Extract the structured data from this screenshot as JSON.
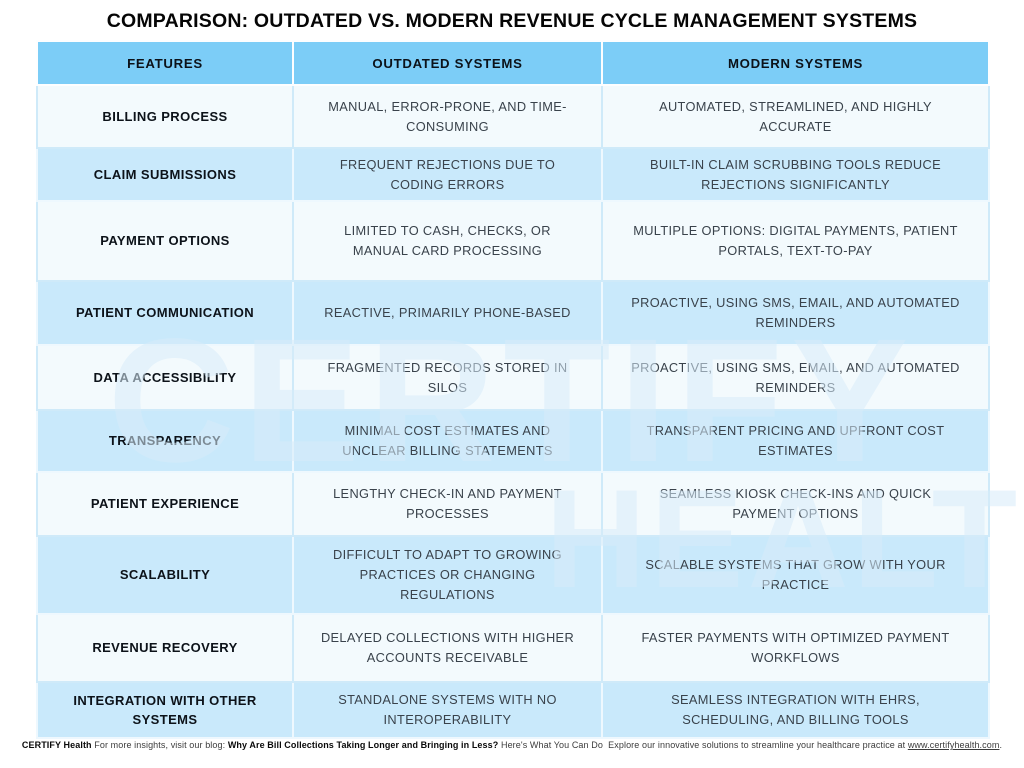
{
  "title": "COMPARISON: OUTDATED VS. MODERN REVENUE CYCLE MANAGEMENT SYSTEMS",
  "colors": {
    "header_blue": "#7ccdf7",
    "row_blue": "#c9e9fb",
    "row_white": "#f3fafd",
    "body_text": "#39424b",
    "heading_text": "#0c1219"
  },
  "watermark": {
    "line1": "CERTIFY",
    "line2": "HEALTH"
  },
  "table": {
    "headers": [
      "FEATURES",
      "OUTDATED SYSTEMS",
      "MODERN SYSTEMS"
    ],
    "rows": [
      {
        "feature": "BILLING PROCESS",
        "outdated": "MANUAL, ERROR-PRONE, AND TIME-CONSUMING",
        "modern": "AUTOMATED, STREAMLINED, AND HIGHLY ACCURATE"
      },
      {
        "feature": "CLAIM SUBMISSIONS",
        "outdated": "FREQUENT REJECTIONS DUE TO CODING ERRORS",
        "modern": "BUILT-IN CLAIM SCRUBBING TOOLS REDUCE REJECTIONS SIGNIFICANTLY"
      },
      {
        "feature": "PAYMENT OPTIONS",
        "outdated": "LIMITED TO CASH, CHECKS, OR MANUAL CARD PROCESSING",
        "modern": "MULTIPLE OPTIONS: DIGITAL PAYMENTS, PATIENT PORTALS, TEXT-TO-PAY"
      },
      {
        "feature": "PATIENT COMMUNICATION",
        "outdated": "REACTIVE, PRIMARILY PHONE-BASED",
        "modern": "PROACTIVE, USING SMS, EMAIL, AND AUTOMATED REMINDERS"
      },
      {
        "feature": "DATA ACCESSIBILITY",
        "outdated": "FRAGMENTED RECORDS STORED IN SILOS",
        "modern": "PROACTIVE, USING SMS, EMAIL, AND AUTOMATED REMINDERS"
      },
      {
        "feature": "TRANSPARENCY",
        "outdated": "MINIMAL COST ESTIMATES AND UNCLEAR BILLING STATEMENTS",
        "modern": "TRANSPARENT PRICING AND UPFRONT COST ESTIMATES"
      },
      {
        "feature": "PATIENT EXPERIENCE",
        "outdated": "LENGTHY CHECK-IN AND PAYMENT PROCESSES",
        "modern": "SEAMLESS KIOSK CHECK-INS AND QUICK PAYMENT OPTIONS"
      },
      {
        "feature": "SCALABILITY",
        "outdated": "DIFFICULT TO ADAPT TO GROWING PRACTICES OR CHANGING REGULATIONS",
        "modern": "SCALABLE SYSTEMS THAT GROW WITH YOUR PRACTICE"
      },
      {
        "feature": "REVENUE RECOVERY",
        "outdated": "DELAYED COLLECTIONS WITH HIGHER ACCOUNTS RECEIVABLE",
        "modern": "FASTER PAYMENTS WITH OPTIMIZED PAYMENT WORKFLOWS"
      },
      {
        "feature": "INTEGRATION WITH OTHER SYSTEMS",
        "outdated": "STANDALONE SYSTEMS WITH NO INTEROPERABILITY",
        "modern": "SEAMLESS INTEGRATION WITH EHRS, SCHEDULING, AND BILLING TOOLS"
      }
    ]
  },
  "footer": {
    "brand": "CERTIFY Health",
    "text1": "For more insights, visit our blog:",
    "blog_title": "Why Are Bill Collections Taking Longer and Bringing in Less?",
    "text2": "Here's What You Can Do",
    "text3": "Explore our innovative solutions to streamline your healthcare practice at",
    "link": "www.certifyhealth.com",
    "period": "."
  }
}
